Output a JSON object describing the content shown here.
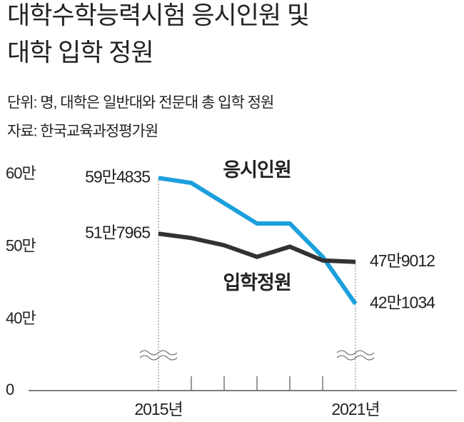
{
  "chart_data": {
    "type": "line",
    "title": [
      "대학수학능력시험 응시인원 및",
      "대학 입학 정원"
    ],
    "subtitle": [
      "단위: 명, 대학은 일반대와 전문대 총 입학 정원",
      "자료: 한국교육과정평가원"
    ],
    "categories": [
      "2015년",
      null,
      null,
      null,
      null,
      null,
      "2021년"
    ],
    "series": [
      {
        "name": "응시인원",
        "color": "#1ba0dc",
        "values": [
          594835,
          588000,
          560000,
          532000,
          532000,
          486000,
          421034
        ],
        "value_labels": [
          "59만4835",
          null,
          null,
          null,
          null,
          null,
          "42만1034"
        ]
      },
      {
        "name": "입학정원",
        "color": "#333333",
        "values": [
          517965,
          512000,
          502000,
          486000,
          500000,
          481000,
          479012
        ],
        "value_labels": [
          "51만7965",
          null,
          null,
          null,
          null,
          null,
          "47만9012"
        ]
      }
    ],
    "ylim": [
      0,
      600000
    ],
    "axis_break": [
      0,
      400000
    ],
    "yticks": [
      {
        "value": 0,
        "label": "0"
      },
      {
        "value": 400000,
        "label": "40만"
      },
      {
        "value": 500000,
        "label": "50만"
      },
      {
        "value": 600000,
        "label": "60만"
      }
    ],
    "grid": false
  }
}
